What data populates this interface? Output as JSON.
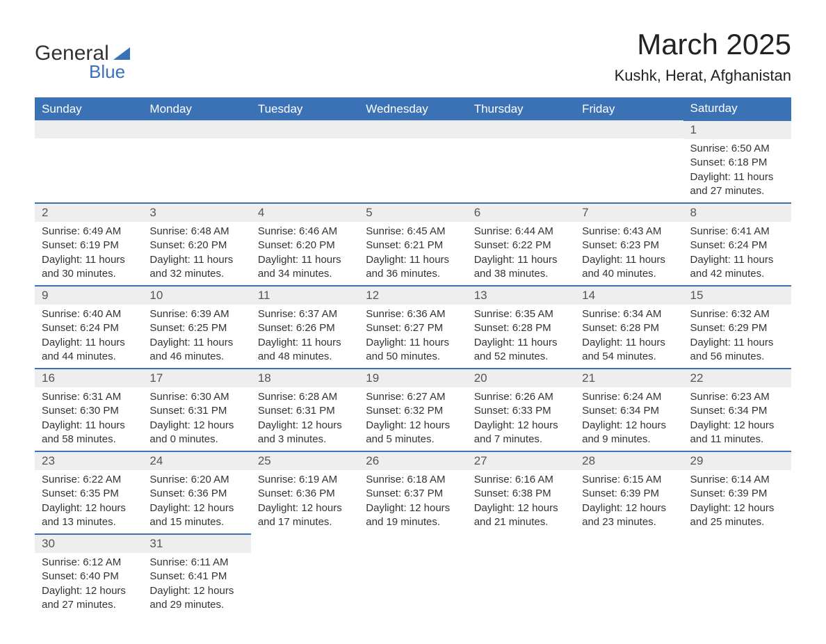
{
  "logo": {
    "text1": "General",
    "text2": "Blue"
  },
  "title": "March 2025",
  "location": "Kushk, Herat, Afghanistan",
  "colors": {
    "header_bg": "#3b72b5",
    "header_text": "#ffffff",
    "daynum_bg": "#eeeeee",
    "row_border": "#3b72b5",
    "text": "#333333",
    "background": "#ffffff"
  },
  "typography": {
    "title_fontsize": 42,
    "location_fontsize": 22,
    "header_fontsize": 17,
    "daynum_fontsize": 17,
    "body_fontsize": 15
  },
  "weekdays": [
    "Sunday",
    "Monday",
    "Tuesday",
    "Wednesday",
    "Thursday",
    "Friday",
    "Saturday"
  ],
  "labels": {
    "sunrise": "Sunrise:",
    "sunset": "Sunset:",
    "daylight": "Daylight:"
  },
  "weeks": [
    [
      null,
      null,
      null,
      null,
      null,
      null,
      {
        "n": "1",
        "sunrise": "6:50 AM",
        "sunset": "6:18 PM",
        "daylight": "11 hours and 27 minutes."
      }
    ],
    [
      {
        "n": "2",
        "sunrise": "6:49 AM",
        "sunset": "6:19 PM",
        "daylight": "11 hours and 30 minutes."
      },
      {
        "n": "3",
        "sunrise": "6:48 AM",
        "sunset": "6:20 PM",
        "daylight": "11 hours and 32 minutes."
      },
      {
        "n": "4",
        "sunrise": "6:46 AM",
        "sunset": "6:20 PM",
        "daylight": "11 hours and 34 minutes."
      },
      {
        "n": "5",
        "sunrise": "6:45 AM",
        "sunset": "6:21 PM",
        "daylight": "11 hours and 36 minutes."
      },
      {
        "n": "6",
        "sunrise": "6:44 AM",
        "sunset": "6:22 PM",
        "daylight": "11 hours and 38 minutes."
      },
      {
        "n": "7",
        "sunrise": "6:43 AM",
        "sunset": "6:23 PM",
        "daylight": "11 hours and 40 minutes."
      },
      {
        "n": "8",
        "sunrise": "6:41 AM",
        "sunset": "6:24 PM",
        "daylight": "11 hours and 42 minutes."
      }
    ],
    [
      {
        "n": "9",
        "sunrise": "6:40 AM",
        "sunset": "6:24 PM",
        "daylight": "11 hours and 44 minutes."
      },
      {
        "n": "10",
        "sunrise": "6:39 AM",
        "sunset": "6:25 PM",
        "daylight": "11 hours and 46 minutes."
      },
      {
        "n": "11",
        "sunrise": "6:37 AM",
        "sunset": "6:26 PM",
        "daylight": "11 hours and 48 minutes."
      },
      {
        "n": "12",
        "sunrise": "6:36 AM",
        "sunset": "6:27 PM",
        "daylight": "11 hours and 50 minutes."
      },
      {
        "n": "13",
        "sunrise": "6:35 AM",
        "sunset": "6:28 PM",
        "daylight": "11 hours and 52 minutes."
      },
      {
        "n": "14",
        "sunrise": "6:34 AM",
        "sunset": "6:28 PM",
        "daylight": "11 hours and 54 minutes."
      },
      {
        "n": "15",
        "sunrise": "6:32 AM",
        "sunset": "6:29 PM",
        "daylight": "11 hours and 56 minutes."
      }
    ],
    [
      {
        "n": "16",
        "sunrise": "6:31 AM",
        "sunset": "6:30 PM",
        "daylight": "11 hours and 58 minutes."
      },
      {
        "n": "17",
        "sunrise": "6:30 AM",
        "sunset": "6:31 PM",
        "daylight": "12 hours and 0 minutes."
      },
      {
        "n": "18",
        "sunrise": "6:28 AM",
        "sunset": "6:31 PM",
        "daylight": "12 hours and 3 minutes."
      },
      {
        "n": "19",
        "sunrise": "6:27 AM",
        "sunset": "6:32 PM",
        "daylight": "12 hours and 5 minutes."
      },
      {
        "n": "20",
        "sunrise": "6:26 AM",
        "sunset": "6:33 PM",
        "daylight": "12 hours and 7 minutes."
      },
      {
        "n": "21",
        "sunrise": "6:24 AM",
        "sunset": "6:34 PM",
        "daylight": "12 hours and 9 minutes."
      },
      {
        "n": "22",
        "sunrise": "6:23 AM",
        "sunset": "6:34 PM",
        "daylight": "12 hours and 11 minutes."
      }
    ],
    [
      {
        "n": "23",
        "sunrise": "6:22 AM",
        "sunset": "6:35 PM",
        "daylight": "12 hours and 13 minutes."
      },
      {
        "n": "24",
        "sunrise": "6:20 AM",
        "sunset": "6:36 PM",
        "daylight": "12 hours and 15 minutes."
      },
      {
        "n": "25",
        "sunrise": "6:19 AM",
        "sunset": "6:36 PM",
        "daylight": "12 hours and 17 minutes."
      },
      {
        "n": "26",
        "sunrise": "6:18 AM",
        "sunset": "6:37 PM",
        "daylight": "12 hours and 19 minutes."
      },
      {
        "n": "27",
        "sunrise": "6:16 AM",
        "sunset": "6:38 PM",
        "daylight": "12 hours and 21 minutes."
      },
      {
        "n": "28",
        "sunrise": "6:15 AM",
        "sunset": "6:39 PM",
        "daylight": "12 hours and 23 minutes."
      },
      {
        "n": "29",
        "sunrise": "6:14 AM",
        "sunset": "6:39 PM",
        "daylight": "12 hours and 25 minutes."
      }
    ],
    [
      {
        "n": "30",
        "sunrise": "6:12 AM",
        "sunset": "6:40 PM",
        "daylight": "12 hours and 27 minutes."
      },
      {
        "n": "31",
        "sunrise": "6:11 AM",
        "sunset": "6:41 PM",
        "daylight": "12 hours and 29 minutes."
      },
      null,
      null,
      null,
      null,
      null
    ]
  ]
}
